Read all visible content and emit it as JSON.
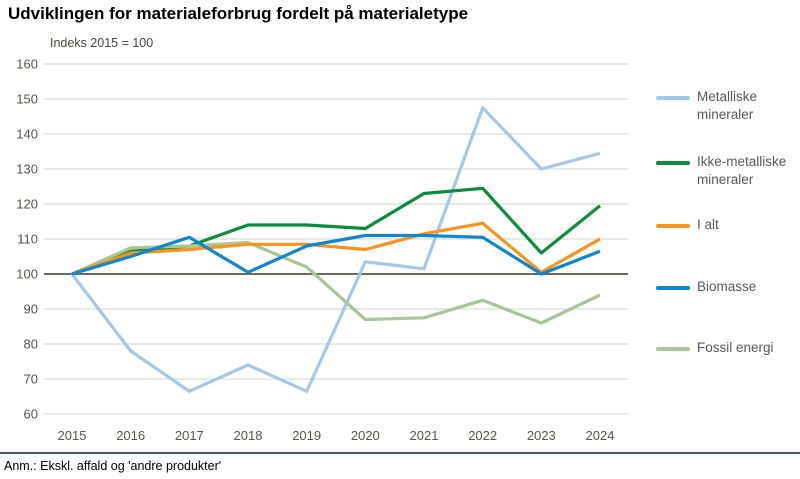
{
  "header": {
    "title": "Udviklingen for materialeforbrug fordelt på materialetype",
    "subtitle": "Indeks 2015 = 100"
  },
  "footnote": {
    "text": "Anm.: Ekskl. affald og 'andre produkter'"
  },
  "chart_data": {
    "type": "line",
    "title": "Udviklingen for materialeforbrug fordelt på materialetype",
    "subtitle": "Indeks 2015 = 100",
    "x": [
      2015,
      2016,
      2017,
      2018,
      2019,
      2020,
      2021,
      2022,
      2023,
      2024
    ],
    "series": [
      {
        "name": "Metalliske mineraler",
        "color": "#a5c8e8",
        "values": [
          100,
          78,
          66.5,
          74,
          66.5,
          103.5,
          101.5,
          147.5,
          130,
          134.5
        ]
      },
      {
        "name": "Ikke-metalliske mineraler",
        "color": "#0e8c3d",
        "values": [
          100,
          106.5,
          108,
          114,
          114,
          113,
          123,
          124.5,
          106,
          119.5
        ]
      },
      {
        "name": "I alt",
        "color": "#f7941e",
        "values": [
          100,
          106,
          107,
          108.5,
          108.5,
          107,
          111.5,
          114.5,
          100.5,
          110
        ]
      },
      {
        "name": "Biomasse",
        "color": "#1186cc",
        "values": [
          100,
          105,
          110.5,
          100.5,
          108,
          111,
          111,
          110.5,
          100,
          106.5
        ]
      },
      {
        "name": "Fossil energi",
        "color": "#a9c696",
        "values": [
          100,
          107.5,
          108,
          109,
          102,
          87,
          87.5,
          92.5,
          86,
          94
        ]
      }
    ],
    "draw_order": [
      0,
      1,
      4,
      2,
      3
    ],
    "ylim": [
      60,
      160
    ],
    "ytick_step": 10,
    "baseline": 100,
    "grid": true,
    "legend_position": "right",
    "colors": {
      "gridline": "#dcdcd4",
      "baseline": "#6b6b63",
      "tick_label": "#55564c"
    }
  }
}
